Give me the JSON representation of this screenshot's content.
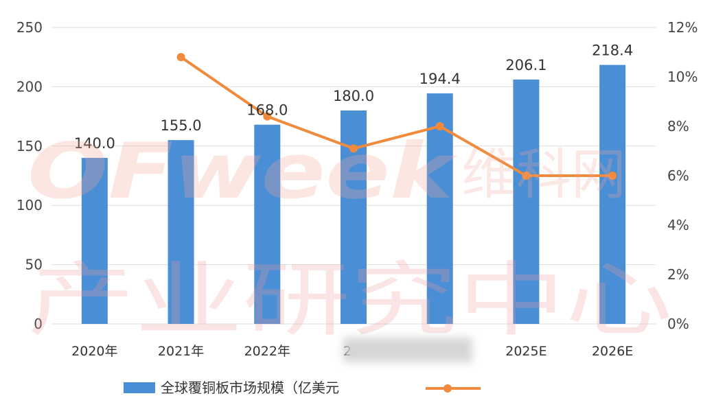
{
  "chart_data": {
    "type": "bar",
    "categories": [
      "2020年",
      "2021年",
      "2022年",
      "2023年",
      "2024年",
      "2025E",
      "2026E"
    ],
    "category_display": [
      "2020年",
      "2021年",
      "2022年",
      "2",
      "",
      "2025E",
      "2026E"
    ],
    "series": [
      {
        "name": "全球覆铜板市场规模（亿美元",
        "type": "bar",
        "color": "#4a8fd6",
        "values": [
          140.0,
          155.0,
          168.0,
          180.0,
          194.4,
          206.1,
          218.4
        ],
        "labels": [
          "140.0",
          "155.0",
          "168.0",
          "180.0",
          "194.4",
          "206.1",
          "218.4"
        ],
        "axis": "left"
      },
      {
        "type": "line",
        "color": "#f08a3c",
        "values": [
          null,
          10.8,
          8.4,
          7.1,
          8.0,
          6.0,
          6.0
        ],
        "axis": "right"
      }
    ],
    "y_left": {
      "min": 0,
      "max": 250,
      "ticks": [
        "0",
        "50",
        "100",
        "150",
        "200",
        "250"
      ]
    },
    "y_right": {
      "min": 0,
      "max": 12,
      "ticks": [
        "0%",
        "2%",
        "4%",
        "6%",
        "8%",
        "10%",
        "12%"
      ]
    },
    "grid": true,
    "legend_position": "bottom"
  },
  "watermark": {
    "brand": "OFweek",
    "brand_cn": "维科网",
    "subtitle": "产业研究中心"
  }
}
